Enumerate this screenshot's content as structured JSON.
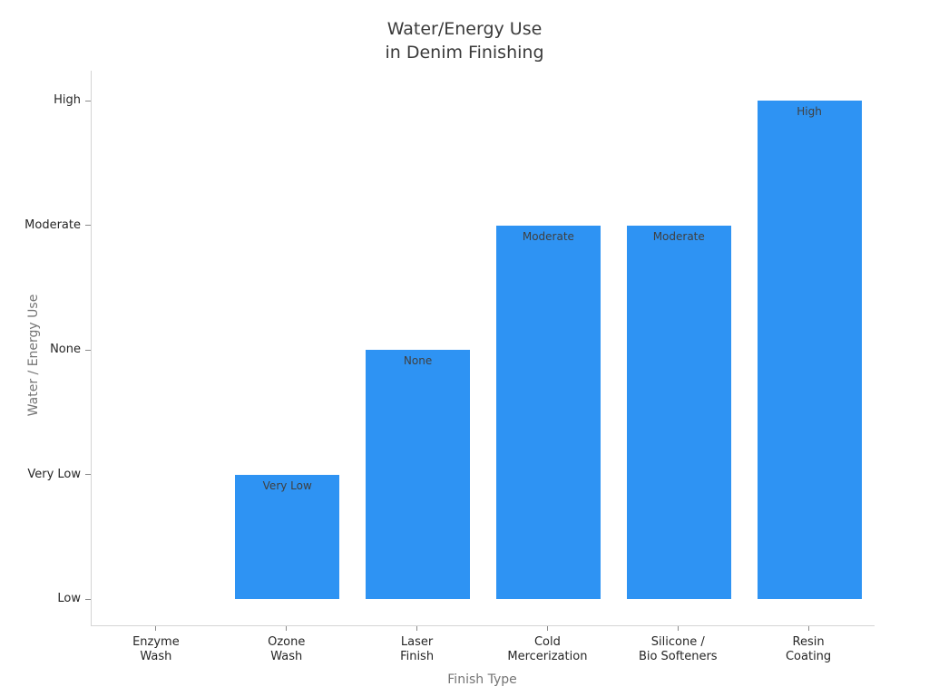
{
  "chart_data": {
    "type": "bar",
    "title": "Water/Energy Use\nin Denim Finishing",
    "xlabel": "Finish Type",
    "ylabel": "Water / Energy Use",
    "categories": [
      "Enzyme\nWash",
      "Ozone\nWash",
      "Laser\nFinish",
      "Cold\nMercerization",
      "Silicone /\nBio Softeners",
      "Resin\nCoating"
    ],
    "values": [
      0,
      1,
      2,
      3,
      3,
      4
    ],
    "bar_labels": [
      "",
      "Very Low",
      "None",
      "Moderate",
      "Moderate",
      "High"
    ],
    "yticks": {
      "labels": [
        "Low",
        "Very Low",
        "None",
        "Moderate",
        "High"
      ],
      "values": [
        0,
        1,
        2,
        3,
        4
      ]
    },
    "ylim": [
      -0.21,
      4.24
    ],
    "bar_width_fraction": 0.8,
    "grid": false,
    "legend": "none",
    "colors": {
      "background": "#ffffff",
      "bar": "#2e93f3",
      "bar_label": "#3f3f3f",
      "tick_label": "#262626",
      "axis_title": "#757575",
      "title": "#3a3a3a",
      "spine": "#d4d4d4",
      "tick_mark": "#8a8a8a"
    }
  }
}
